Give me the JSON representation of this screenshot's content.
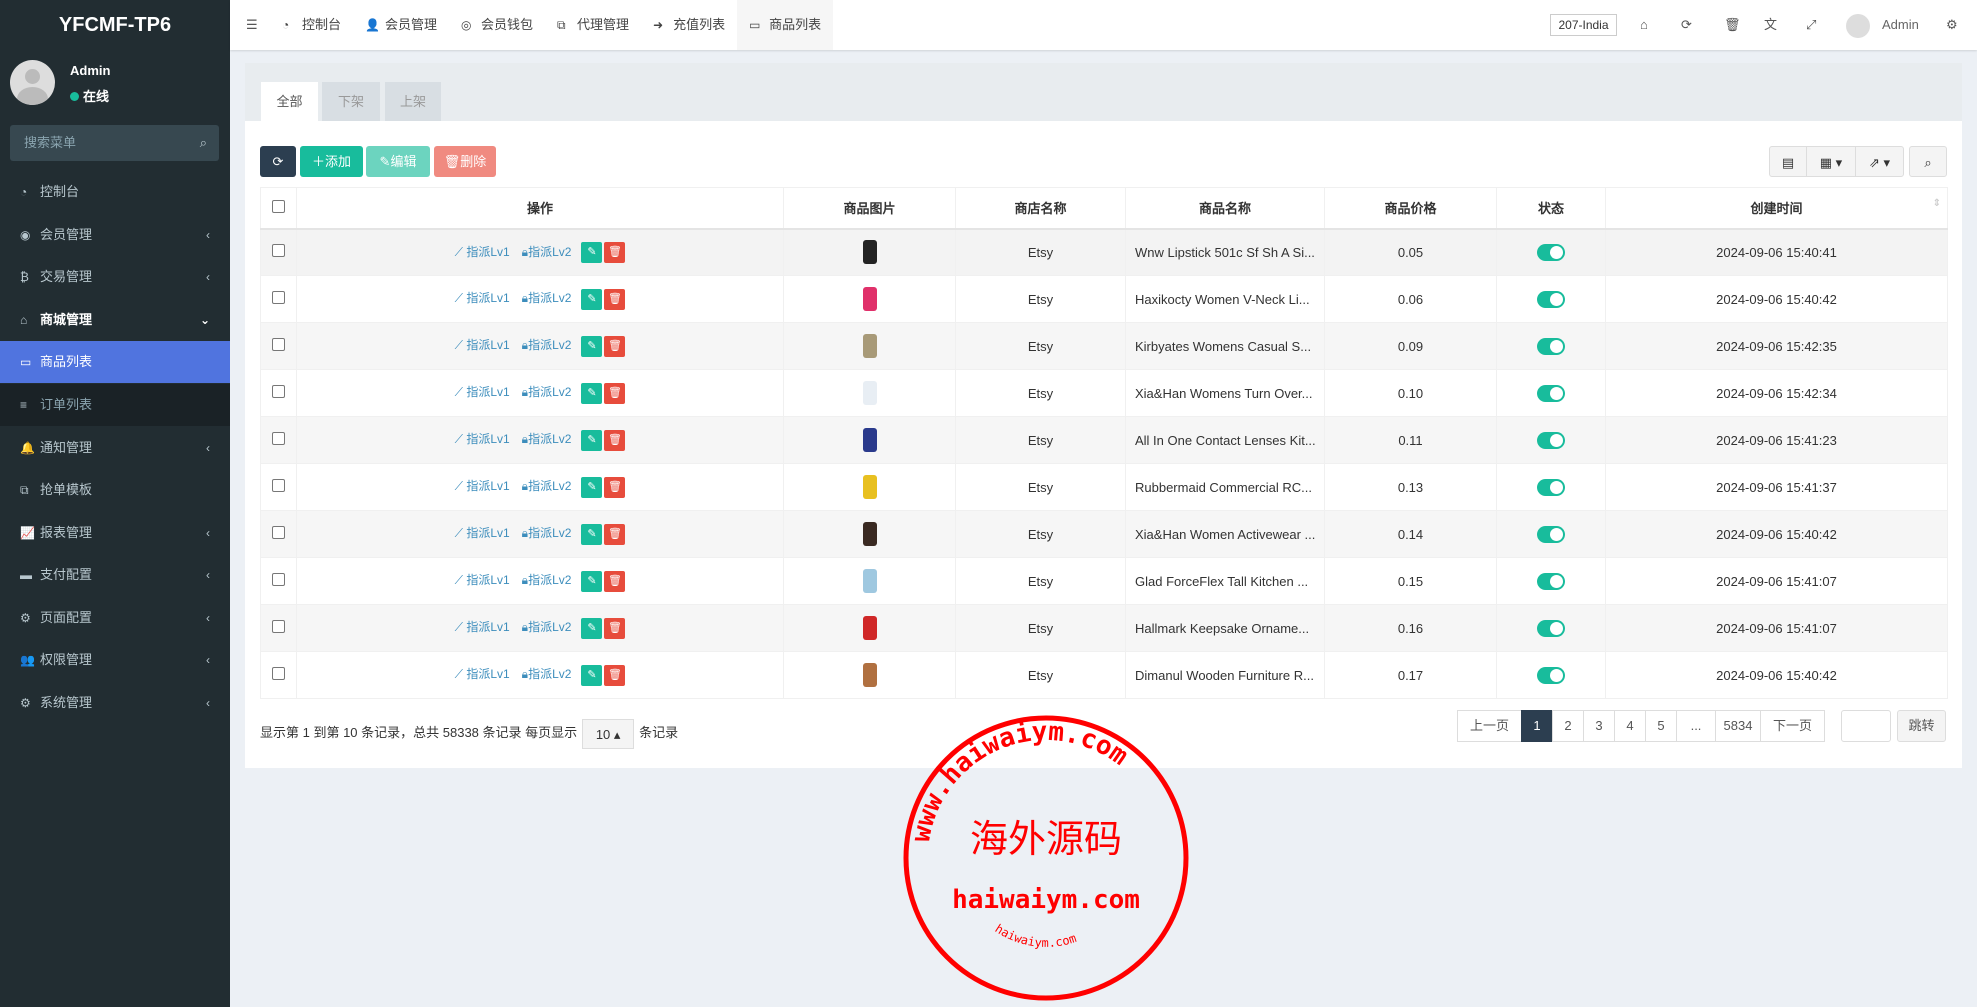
{
  "app": {
    "title": "YFCMF-TP6"
  },
  "user": {
    "name": "Admin",
    "status": "在线"
  },
  "sidebar": {
    "search_placeholder": "搜索菜单",
    "items": [
      {
        "label": "控制台",
        "icon": "dashboard-icon"
      },
      {
        "label": "会员管理",
        "icon": "user-circle-icon",
        "arrow": "‹"
      },
      {
        "label": "交易管理",
        "icon": "bitcoin-icon",
        "arrow": "‹"
      },
      {
        "label": "商城管理",
        "icon": "home-icon",
        "arrow": "⌄"
      },
      {
        "label": "商品列表",
        "icon": "desktop-icon"
      },
      {
        "label": "订单列表",
        "icon": "bars-icon"
      },
      {
        "label": "通知管理",
        "icon": "bell-icon",
        "arrow": "‹"
      },
      {
        "label": "抢单模板",
        "icon": "sitemap-icon"
      },
      {
        "label": "报表管理",
        "icon": "line-chart-icon",
        "arrow": "‹"
      },
      {
        "label": "支付配置",
        "icon": "credit-card-icon",
        "arrow": "‹"
      },
      {
        "label": "页面配置",
        "icon": "gear-icon",
        "arrow": "‹"
      },
      {
        "label": "权限管理",
        "icon": "users-icon",
        "arrow": "‹"
      },
      {
        "label": "系统管理",
        "icon": "gears-icon",
        "arrow": "‹"
      }
    ]
  },
  "topnav": {
    "tabs": [
      {
        "label": "控制台",
        "icon": "dashboard-icon"
      },
      {
        "label": "会员管理",
        "icon": "user-icon"
      },
      {
        "label": "会员钱包",
        "icon": "wallet-icon"
      },
      {
        "label": "代理管理",
        "icon": "sitemap-icon"
      },
      {
        "label": "充值列表",
        "icon": "sign-in-icon"
      },
      {
        "label": "商品列表",
        "icon": "desktop-icon"
      }
    ],
    "region": "207-India",
    "user": "Admin"
  },
  "tabs": [
    "全部",
    "下架",
    "上架"
  ],
  "toolbar": {
    "add": "添加",
    "edit": "编辑",
    "delete": "删除"
  },
  "table": {
    "headers": [
      "操作",
      "商品图片",
      "商店名称",
      "商品名称",
      "商品价格",
      "状态",
      "创建时间"
    ],
    "action_lv1": "指派Lv1",
    "action_lv2": "指派Lv2",
    "rows": [
      {
        "shop": "Etsy",
        "name": "Wnw Lipstick 501c Sf Sh A Si...",
        "price": "0.05",
        "status": true,
        "created": "2024-09-06 15:40:41",
        "img_color": "#222"
      },
      {
        "shop": "Etsy",
        "name": "Haxikocty Women V-Neck Li...",
        "price": "0.06",
        "status": true,
        "created": "2024-09-06 15:40:42",
        "img_color": "#e0306a"
      },
      {
        "shop": "Etsy",
        "name": "Kirbyates Womens Casual S...",
        "price": "0.09",
        "status": true,
        "created": "2024-09-06 15:42:35",
        "img_color": "#a89a78"
      },
      {
        "shop": "Etsy",
        "name": "Xia&Han Womens Turn Over...",
        "price": "0.10",
        "status": true,
        "created": "2024-09-06 15:42:34",
        "img_color": "#e8eef4"
      },
      {
        "shop": "Etsy",
        "name": "All In One Contact Lenses Kit...",
        "price": "0.11",
        "status": true,
        "created": "2024-09-06 15:41:23",
        "img_color": "#2a3a8c"
      },
      {
        "shop": "Etsy",
        "name": "Rubbermaid Commercial RC...",
        "price": "0.13",
        "status": true,
        "created": "2024-09-06 15:41:37",
        "img_color": "#e8c020"
      },
      {
        "shop": "Etsy",
        "name": "Xia&Han Women Activewear ...",
        "price": "0.14",
        "status": true,
        "created": "2024-09-06 15:40:42",
        "img_color": "#3a2a22"
      },
      {
        "shop": "Etsy",
        "name": "Glad ForceFlex Tall Kitchen ...",
        "price": "0.15",
        "status": true,
        "created": "2024-09-06 15:41:07",
        "img_color": "#9fc8e0"
      },
      {
        "shop": "Etsy",
        "name": "Hallmark Keepsake Orname...",
        "price": "0.16",
        "status": true,
        "created": "2024-09-06 15:41:07",
        "img_color": "#d02828"
      },
      {
        "shop": "Etsy",
        "name": "Dimanul Wooden Furniture R...",
        "price": "0.17",
        "status": true,
        "created": "2024-09-06 15:40:42",
        "img_color": "#b07040"
      }
    ]
  },
  "footer": {
    "summary": "显示第 1 到第 10 条记录，总共 58338 条记录 每页显示",
    "page_size": "10 ▴",
    "suffix": "条记录"
  },
  "pagination": {
    "prev": "上一页",
    "pages": [
      "1",
      "2",
      "3",
      "4",
      "5",
      "...",
      "5834"
    ],
    "current": "1",
    "next": "下一页",
    "jump": "跳转",
    "jump_value": ""
  },
  "watermark": {
    "center": "海外源码",
    "domain": "haiwaiym.com",
    "ring": "www.haiwaiym.com",
    "inner": "haiwaiym.com"
  },
  "colors": {
    "sidebar": "#222d32",
    "active": "#5074df",
    "primary": "#18bc9c",
    "danger": "#e74c3c",
    "dark": "#2c3e50"
  }
}
